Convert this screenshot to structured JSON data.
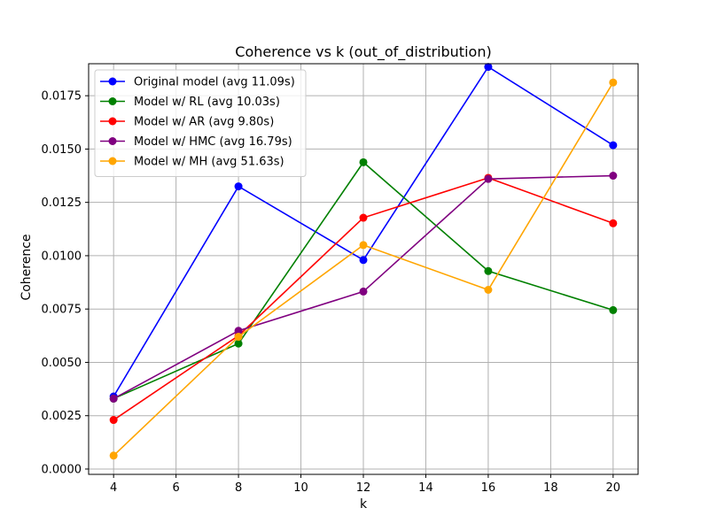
{
  "chart_data": {
    "type": "line",
    "title": "Coherence vs k (out_of_distribution)",
    "xlabel": "k",
    "ylabel": "Coherence",
    "x": [
      4,
      8,
      12,
      16,
      20
    ],
    "xlim": [
      3.2,
      20.8
    ],
    "ylim": [
      -0.00025,
      0.019
    ],
    "xticks": [
      4,
      6,
      8,
      10,
      12,
      14,
      16,
      18,
      20
    ],
    "yticks": [
      0.0,
      0.0025,
      0.005,
      0.0075,
      0.01,
      0.0125,
      0.015,
      0.0175
    ],
    "xtick_labels": [
      "4",
      "6",
      "8",
      "10",
      "12",
      "14",
      "16",
      "18",
      "20"
    ],
    "ytick_labels": [
      "0.0000",
      "0.0025",
      "0.0050",
      "0.0075",
      "0.0100",
      "0.0125",
      "0.0150",
      "0.0175"
    ],
    "grid": true,
    "legend_position": "top-left",
    "series": [
      {
        "name": "Original model (avg 11.09s)",
        "color": "#0000ff",
        "values": [
          0.0034,
          0.01325,
          0.0098,
          0.01885,
          0.01518
        ]
      },
      {
        "name": "Model w/ RL (avg 10.03s)",
        "color": "#008000",
        "values": [
          0.0033,
          0.00588,
          0.01438,
          0.00928,
          0.00745
        ]
      },
      {
        "name": "Model w/ AR (avg 9.80s)",
        "color": "#ff0000",
        "values": [
          0.0023,
          0.00625,
          0.01178,
          0.01365,
          0.01152
        ]
      },
      {
        "name": "Model w/ HMC (avg 16.79s)",
        "color": "#800080",
        "values": [
          0.0033,
          0.00648,
          0.00832,
          0.0136,
          0.01375
        ]
      },
      {
        "name": "Model w/ MH (avg 51.63s)",
        "color": "#ffa500",
        "values": [
          0.00063,
          0.0062,
          0.0105,
          0.0084,
          0.01812
        ]
      }
    ]
  }
}
